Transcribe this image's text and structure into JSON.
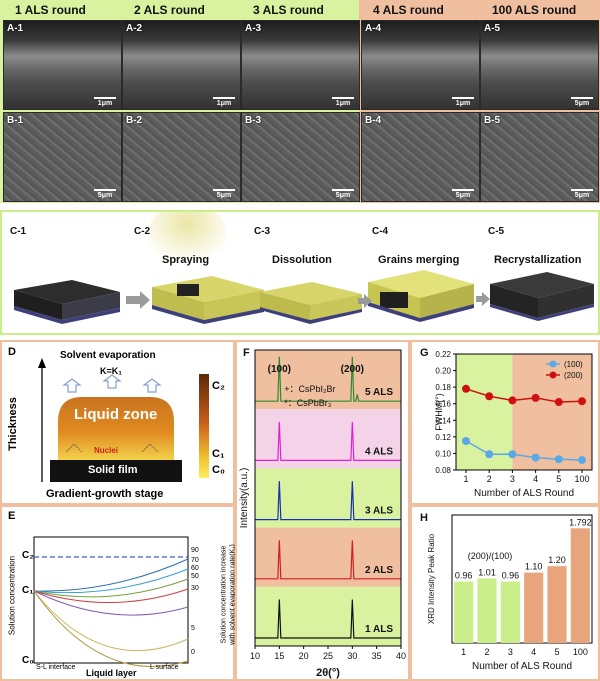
{
  "panel_a_b": {
    "round_headers": [
      "1 ALS round",
      "2 ALS round",
      "3 ALS round",
      "4 ALS round",
      "100 ALS round"
    ],
    "a_labels": [
      "A-1",
      "A-2",
      "A-3",
      "A-4",
      "A-5"
    ],
    "b_labels": [
      "B-1",
      "B-2",
      "B-3",
      "B-4",
      "B-5"
    ],
    "a_scalebars": [
      "1μm",
      "1μm",
      "1μm",
      "1μm",
      "5μm"
    ],
    "b_scalebars": [
      "5μm",
      "5μm",
      "5μm",
      "5μm",
      "5μm"
    ],
    "colors": {
      "green_region": "#d9f2a0",
      "salmon_region": "#efbf9f"
    }
  },
  "panel_c": {
    "labels": [
      "C-1",
      "C-2",
      "C-3",
      "C-4",
      "C-5"
    ],
    "steps": [
      "Spraying",
      "Dissolution",
      "Grains merging",
      "Recrystallization"
    ]
  },
  "panel_d": {
    "label": "D",
    "title": "Solvent evaporation",
    "k_label": "K=K₁",
    "y_axis": "Thickness",
    "liquid_zone": "Liquid zone",
    "nuclei": "Nuclei",
    "solid_film": "Solid film",
    "stage": "Gradient-growth stage",
    "c_labels": [
      "C₂",
      "C₁",
      "C₀"
    ]
  },
  "panel_e": {
    "label": "E",
    "y_left": "Solution concentration",
    "y_right_1": "Solution concentration increase",
    "y_right_2": "with solvent evaporation rate(K₁)",
    "xlabel": "Liquid layer",
    "x_left": "S-L interface",
    "x_right": "L surface",
    "c_labels": [
      "C₂",
      "C₁",
      "C₀"
    ],
    "curve_labels": [
      "90",
      "70",
      "60",
      "50",
      "30",
      "5",
      "0"
    ]
  },
  "chart_data": [
    {
      "type": "line",
      "panel": "F",
      "xlabel": "2θ(°)",
      "ylabel": "Intensity(a.u.)",
      "xlim": [
        10,
        40
      ],
      "x_ticks": [
        "10",
        "15",
        "20",
        "25",
        "30",
        "35",
        "40"
      ],
      "peak_labels": [
        "(100)",
        "(200)"
      ],
      "legend": [
        "+：CsPbI₂Br",
        "*：CsPbBr₃"
      ],
      "series": [
        {
          "name": "5 ALS",
          "color": "#2e8b2e",
          "peaks": [
            15,
            30,
            31
          ]
        },
        {
          "name": "4 ALS",
          "color": "#e020d0",
          "peaks": [
            15,
            30
          ]
        },
        {
          "name": "3 ALS",
          "color": "#1a2fb0",
          "peaks": [
            15,
            30
          ]
        },
        {
          "name": "2 ALS",
          "color": "#d02020",
          "peaks": [
            15,
            30
          ]
        },
        {
          "name": "1 ALS",
          "color": "#111111",
          "peaks": [
            15,
            30
          ]
        }
      ]
    },
    {
      "type": "line",
      "panel": "G",
      "xlabel": "Number of ALS Round",
      "ylabel": "FWHM(°)",
      "categories": [
        "1",
        "2",
        "3",
        "4",
        "5",
        "100"
      ],
      "ylim": [
        0.08,
        0.22
      ],
      "y_ticks": [
        "0.08",
        "0.10",
        "0.12",
        "0.14",
        "0.16",
        "0.18",
        "0.20",
        "0.22"
      ],
      "series": [
        {
          "name": "(100)",
          "color": "#5aa9e6",
          "values": [
            0.115,
            0.099,
            0.099,
            0.095,
            0.093,
            0.092
          ]
        },
        {
          "name": "(200)",
          "color": "#d01010",
          "values": [
            0.178,
            0.169,
            0.164,
            0.167,
            0.162,
            0.163
          ]
        }
      ]
    },
    {
      "type": "bar",
      "panel": "H",
      "title": "(200)/(100)",
      "xlabel": "Number of ALS Round",
      "ylabel": "XRD Intensity Peak Ratio",
      "categories": [
        "1",
        "2",
        "3",
        "4",
        "5",
        "100"
      ],
      "values": [
        0.96,
        1.01,
        0.96,
        1.1,
        1.2,
        1.792
      ],
      "value_labels": [
        "0.96",
        "1.01",
        "0.96",
        "1.10",
        "1.20",
        "1.792"
      ],
      "ylim": [
        0,
        2
      ],
      "colors": [
        "#c9ee8a",
        "#c9ee8a",
        "#c9ee8a",
        "#e8a57c",
        "#e8a57c",
        "#e8a57c"
      ]
    }
  ]
}
